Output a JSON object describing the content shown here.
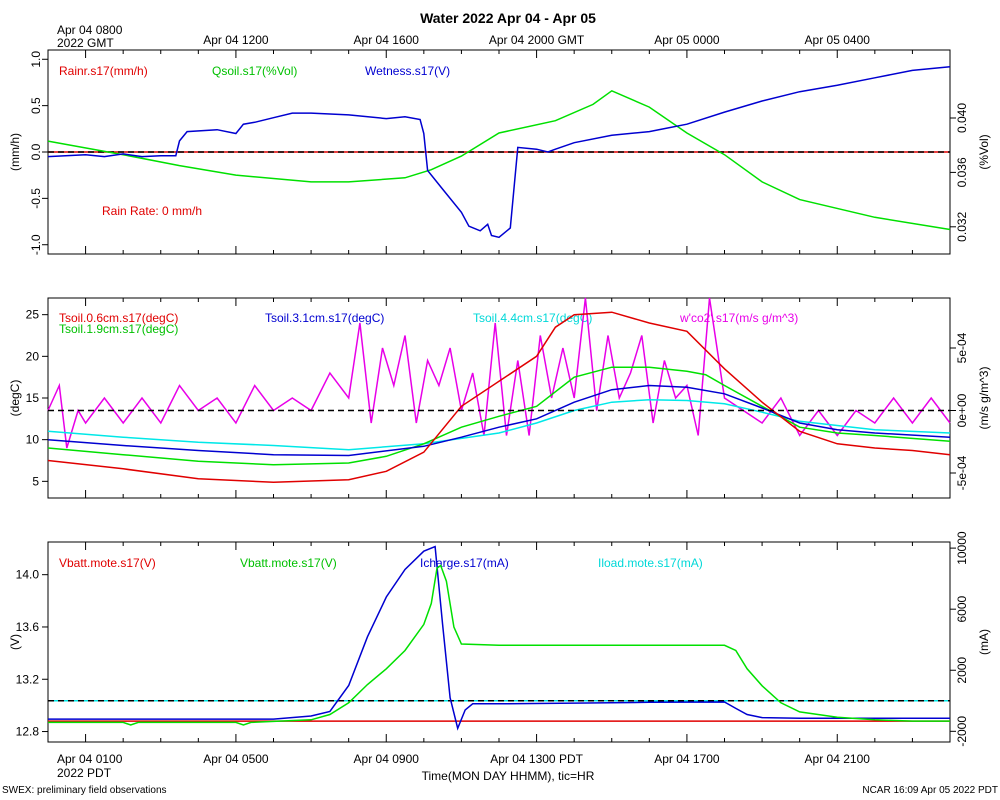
{
  "figure": {
    "title": "Water 2022 Apr 04 - Apr 05",
    "top_axis_labels": [
      "Apr 04 0800\n2022 GMT",
      "Apr 04 1200",
      "Apr 04 1600",
      "Apr 04 2000 GMT",
      "Apr 05 0000",
      "Apr 05 0400"
    ],
    "bottom_axis_labels": [
      "Apr 04 0100\n2022 PDT",
      "Apr 04 0500",
      "Apr 04 0900",
      "Apr 04 1300 PDT",
      "Apr 04 1700",
      "Apr 04 2100"
    ],
    "xlabel": "Time(MON DAY HHMM), tic=HR",
    "footer_left": "SWEX: preliminary field observations",
    "footer_right": "NCAR 16:09 Apr 05 2022 PDT"
  },
  "chart_data": [
    {
      "type": "line",
      "panel": "water",
      "xlim": [
        0,
        24
      ],
      "ylabel_left": "(mm/h)",
      "ylabel_right": "(%Vol)",
      "ylim_left": [
        -1.1,
        1.1
      ],
      "ylim_right": [
        0.03,
        0.045
      ],
      "yticks_left": [
        "1.0",
        "0.5",
        "0.0",
        "-0.5",
        "-1.0"
      ],
      "yticks_left_values": [
        1.0,
        0.5,
        0.0,
        -0.5,
        -1.0
      ],
      "yticks_right": [
        "0.040",
        "0.036",
        "0.032"
      ],
      "yticks_right_values": [
        0.04,
        0.036,
        0.032
      ],
      "zero_line": 0,
      "annotation": "Rain Rate: 0 mm/h",
      "series": [
        {
          "name": "Rainr.s17(mm/h)",
          "color": "#e00000",
          "axis": "left",
          "x": [
            0,
            24
          ],
          "y": [
            0,
            0
          ]
        },
        {
          "name": "Qsoil.s17(%Vol)",
          "color": "#00e000",
          "axis": "right",
          "x": [
            0,
            2,
            3.5,
            5,
            7,
            8,
            9.5,
            10.2,
            11,
            12,
            13.5,
            14.5,
            15,
            16,
            17,
            18,
            19,
            20,
            22,
            24
          ],
          "y": [
            0.0383,
            0.0373,
            0.0365,
            0.0358,
            0.0353,
            0.0353,
            0.0356,
            0.0362,
            0.0372,
            0.0389,
            0.0398,
            0.041,
            0.042,
            0.0408,
            0.0389,
            0.0373,
            0.0353,
            0.034,
            0.0327,
            0.0318
          ]
        }
      ],
      "overlay_series": {
        "name": "Wetness.s17(V)",
        "color": "#0000d0",
        "axis": "left",
        "x": [
          0,
          1,
          1.5,
          2,
          2.5,
          3,
          3.4,
          3.5,
          3.7,
          4.5,
          5,
          5.2,
          5.5,
          6,
          6.5,
          7,
          8,
          9,
          9.5,
          9.9,
          10,
          10.1,
          10.5,
          11,
          11.2,
          11.5,
          11.7,
          11.8,
          12,
          12.3,
          12.5,
          13,
          13.3,
          13.5,
          14,
          15,
          16,
          17,
          18,
          19,
          20,
          21,
          22,
          23,
          24
        ],
        "y": [
          -0.05,
          -0.03,
          -0.05,
          -0.02,
          -0.05,
          -0.04,
          -0.04,
          0.12,
          0.22,
          0.24,
          0.2,
          0.3,
          0.32,
          0.37,
          0.42,
          0.42,
          0.4,
          0.36,
          0.38,
          0.35,
          0.2,
          -0.2,
          -0.4,
          -0.65,
          -0.8,
          -0.85,
          -0.78,
          -0.9,
          -0.92,
          -0.82,
          0.05,
          0.03,
          0.0,
          0.03,
          0.1,
          0.18,
          0.22,
          0.3,
          0.43,
          0.55,
          0.65,
          0.72,
          0.8,
          0.88,
          0.92
        ]
      }
    },
    {
      "type": "line",
      "panel": "soil_temperature",
      "xlim": [
        0,
        24
      ],
      "ylabel_left": "(degC)",
      "ylabel_right": "(m/s g/m^3)",
      "ylim_left": [
        3,
        27
      ],
      "ylim_right": [
        -0.0007,
        0.0009
      ],
      "yticks_left": [
        "25",
        "20",
        "15",
        "10",
        "5"
      ],
      "yticks_left_values": [
        25,
        20,
        15,
        10,
        5
      ],
      "yticks_right": [
        "5e-04",
        "0e+00",
        "-5e-04"
      ],
      "yticks_right_values": [
        0.0005,
        0,
        -0.0005
      ],
      "zero_line": 0,
      "series": [
        {
          "name": "Tsoil.0.6cm.s17(degC)",
          "color": "#e00000",
          "axis": "left",
          "x": [
            0,
            2,
            4,
            6,
            8,
            9,
            10,
            11,
            12,
            13,
            13.5,
            14,
            15,
            16,
            17,
            18,
            19,
            20,
            21,
            22,
            23,
            24
          ],
          "y": [
            7.5,
            6.5,
            5.3,
            4.9,
            5.2,
            6.2,
            8.5,
            14.0,
            17.0,
            20.0,
            23.5,
            25.0,
            25.3,
            24.0,
            23.0,
            18.5,
            14.5,
            11.0,
            9.5,
            9.0,
            8.7,
            8.2
          ]
        },
        {
          "name": "Tsoil.1.9cm.s17(degC)",
          "color": "#00e000",
          "axis": "left",
          "x": [
            0,
            2,
            4,
            6,
            8,
            9,
            10,
            11,
            12,
            13,
            14,
            15,
            16,
            17,
            17.5,
            18,
            19,
            20,
            21,
            22,
            24
          ],
          "y": [
            9.0,
            8.2,
            7.4,
            7.0,
            7.2,
            8.0,
            9.5,
            11.5,
            12.8,
            14.0,
            17.5,
            18.7,
            18.7,
            18.2,
            17.8,
            16.5,
            14.0,
            11.5,
            10.8,
            10.5,
            9.8
          ]
        },
        {
          "name": "Tsoil.3.1cm.s17(degC)",
          "color": "#0000d0",
          "axis": "left",
          "x": [
            0,
            2,
            4,
            6,
            8,
            10,
            11,
            12,
            13,
            14,
            15,
            16,
            17,
            18,
            19,
            20,
            21,
            22,
            24
          ],
          "y": [
            10.0,
            9.3,
            8.7,
            8.2,
            8.1,
            9.2,
            10.3,
            11.5,
            12.5,
            14.5,
            16.0,
            16.5,
            16.3,
            15.5,
            13.8,
            12.0,
            11.2,
            10.8,
            10.3
          ]
        },
        {
          "name": "Tsoil.4.4cm.s17(degC)",
          "color": "#00e8e8",
          "axis": "left",
          "x": [
            0,
            2,
            4,
            6,
            8,
            10,
            12,
            13,
            14,
            15,
            16,
            17,
            18,
            19,
            20,
            22,
            24
          ],
          "y": [
            11.0,
            10.3,
            9.7,
            9.3,
            8.8,
            9.5,
            10.8,
            12.0,
            13.5,
            14.5,
            14.8,
            14.7,
            14.3,
            13.3,
            12.2,
            11.2,
            10.8
          ]
        },
        {
          "name": "w'co2'.s17(m/s g/m^3)",
          "color": "#e800e8",
          "axis": "right",
          "x": [
            0,
            0.3,
            0.5,
            0.8,
            1,
            1.5,
            2,
            2.5,
            3,
            3.5,
            4,
            4.5,
            5,
            5.5,
            6,
            6.5,
            7,
            7.5,
            8,
            8.3,
            8.6,
            8.9,
            9.2,
            9.5,
            9.8,
            10.1,
            10.4,
            10.7,
            11,
            11.3,
            11.6,
            11.9,
            12.2,
            12.5,
            12.8,
            13.1,
            13.4,
            13.7,
            14,
            14.3,
            14.6,
            14.9,
            15.2,
            15.5,
            15.8,
            16.1,
            16.4,
            16.7,
            17,
            17.3,
            17.6,
            18,
            18.5,
            19,
            19.5,
            20,
            20.5,
            21,
            21.5,
            22,
            22.5,
            23,
            23.5,
            24
          ],
          "y": [
            0.0,
            0.0002,
            -0.0003,
            0.0,
            -0.0001,
            0.0001,
            -0.0001,
            0.0001,
            -0.0001,
            0.0002,
            0.0,
            0.0001,
            -0.0001,
            0.0002,
            0.0,
            0.0001,
            0.0,
            0.0003,
            0.0001,
            0.0007,
            -0.0001,
            0.0005,
            0.0002,
            0.0006,
            -0.0001,
            0.0004,
            0.0002,
            0.0005,
            0.0,
            0.0003,
            -0.0002,
            0.0007,
            -0.0002,
            0.0004,
            -0.0002,
            0.0006,
            0.0001,
            0.0005,
            0.0001,
            0.0009,
            0.0,
            0.0006,
            0.0001,
            0.0003,
            0.0006,
            -0.0001,
            0.0004,
            0.0001,
            0.0002,
            -0.0002,
            0.0009,
            0.0001,
            0.0,
            -0.0001,
            0.0001,
            -0.0002,
            0.0,
            -0.0002,
            0.0,
            -0.0001,
            0.0001,
            -0.0001,
            0.0001,
            -0.0001
          ]
        }
      ]
    },
    {
      "type": "line",
      "panel": "power",
      "xlim": [
        0,
        24
      ],
      "ylabel_left": "(V)",
      "ylabel_right": "(mA)",
      "ylim_left": [
        12.72,
        14.25
      ],
      "ylim_right": [
        -2700,
        10400
      ],
      "yticks_left": [
        "14.0",
        "13.6",
        "13.2",
        "12.8"
      ],
      "yticks_left_values": [
        14.0,
        13.6,
        13.2,
        12.8
      ],
      "yticks_right": [
        "10000",
        "6000",
        "2000",
        "-2000"
      ],
      "yticks_right_values": [
        10000,
        6000,
        2000,
        -2000
      ],
      "zero_line": 0,
      "series": [
        {
          "name": "Vbatt.mote.s17(V)",
          "color": "#e00000",
          "axis": "left",
          "x": [
            0,
            24
          ],
          "y": [
            12.88,
            12.88
          ]
        },
        {
          "name": "Vbatt.mote.s17(V)",
          "color": "#00e000",
          "axis": "left",
          "x": [
            0,
            2,
            2.2,
            2.4,
            5,
            5.2,
            5.4,
            7,
            7.5,
            8,
            8.5,
            9,
            9.5,
            10,
            10.2,
            10.35,
            10.45,
            10.6,
            10.8,
            11,
            12,
            14,
            16,
            18,
            18.3,
            18.6,
            19,
            19.5,
            20,
            21,
            22,
            23,
            24
          ],
          "y": [
            12.87,
            12.87,
            12.85,
            12.87,
            12.87,
            12.85,
            12.87,
            12.89,
            12.93,
            13.02,
            13.16,
            13.28,
            13.42,
            13.62,
            13.78,
            14.05,
            14.07,
            13.95,
            13.6,
            13.47,
            13.46,
            13.46,
            13.46,
            13.46,
            13.42,
            13.28,
            13.15,
            13.02,
            12.95,
            12.91,
            12.89,
            12.88,
            12.88
          ]
        },
        {
          "name": "Icharge.s17(mA)",
          "color": "#0000d0",
          "axis": "right",
          "x": [
            0,
            6,
            7,
            7.5,
            8,
            8.5,
            9,
            9.5,
            10,
            10.3,
            10.5,
            10.7,
            10.9,
            11.1,
            11.3,
            11.5,
            12,
            14,
            16,
            18,
            18.3,
            18.6,
            19,
            20,
            24
          ],
          "y": [
            -1200,
            -1200,
            -1000,
            -700,
            1000,
            4200,
            6800,
            8600,
            9800,
            10100,
            5000,
            200,
            -1800,
            -600,
            -200,
            -200,
            -200,
            -150,
            -100,
            -80,
            -500,
            -900,
            -1100,
            -1150,
            -1150
          ]
        },
        {
          "name": "Iload.mote.s17(mA)",
          "color": "#00e8e8",
          "axis": "right",
          "x": [
            0,
            24
          ],
          "y": [
            -1250,
            -1250
          ]
        }
      ]
    }
  ]
}
